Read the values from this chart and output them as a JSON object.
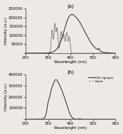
{
  "title_a": "(a)",
  "title_b": "(b)",
  "xlabel": "Wavelength (nm)",
  "ylabel": "Intensity (a.u.)",
  "xlim": [
    250,
    650
  ],
  "ylim_a": [
    0,
    250000
  ],
  "ylim_b": [
    0,
    400000
  ],
  "yticks_a": [
    0,
    50000,
    100000,
    150000,
    200000,
    250000
  ],
  "yticks_b": [
    0,
    100000,
    200000,
    300000,
    400000
  ],
  "xticks": [
    250,
    350,
    450,
    550,
    650
  ],
  "legend_solid": "500 ng/spot",
  "legend_dashed": "blank",
  "bg_color": "#ede9e4"
}
